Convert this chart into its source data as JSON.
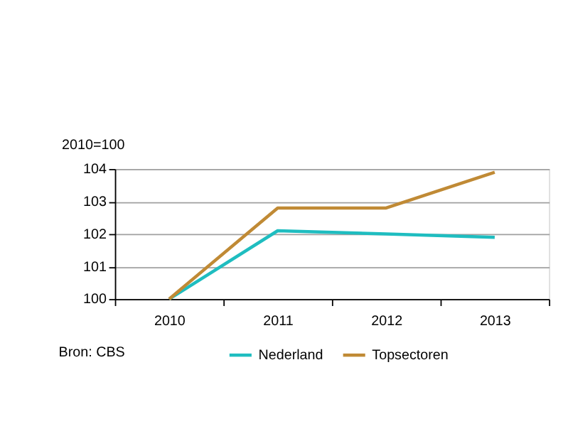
{
  "chart_data": {
    "type": "line",
    "ylabel": "2010=100",
    "categories": [
      "2010",
      "2011",
      "2012",
      "2013"
    ],
    "series": [
      {
        "name": "Nederland",
        "color": "#1fbdc0",
        "values": [
          100,
          102.1,
          102.0,
          101.9
        ]
      },
      {
        "name": "Topsectoren",
        "color": "#c08a35",
        "values": [
          100,
          102.8,
          102.8,
          103.9
        ]
      }
    ],
    "ylim": [
      100,
      104
    ],
    "yticks": [
      100,
      101,
      102,
      103,
      104
    ],
    "grid": "y",
    "legend": "bottom",
    "line_style": "solid",
    "annotations": [
      "Bron: CBS"
    ]
  }
}
